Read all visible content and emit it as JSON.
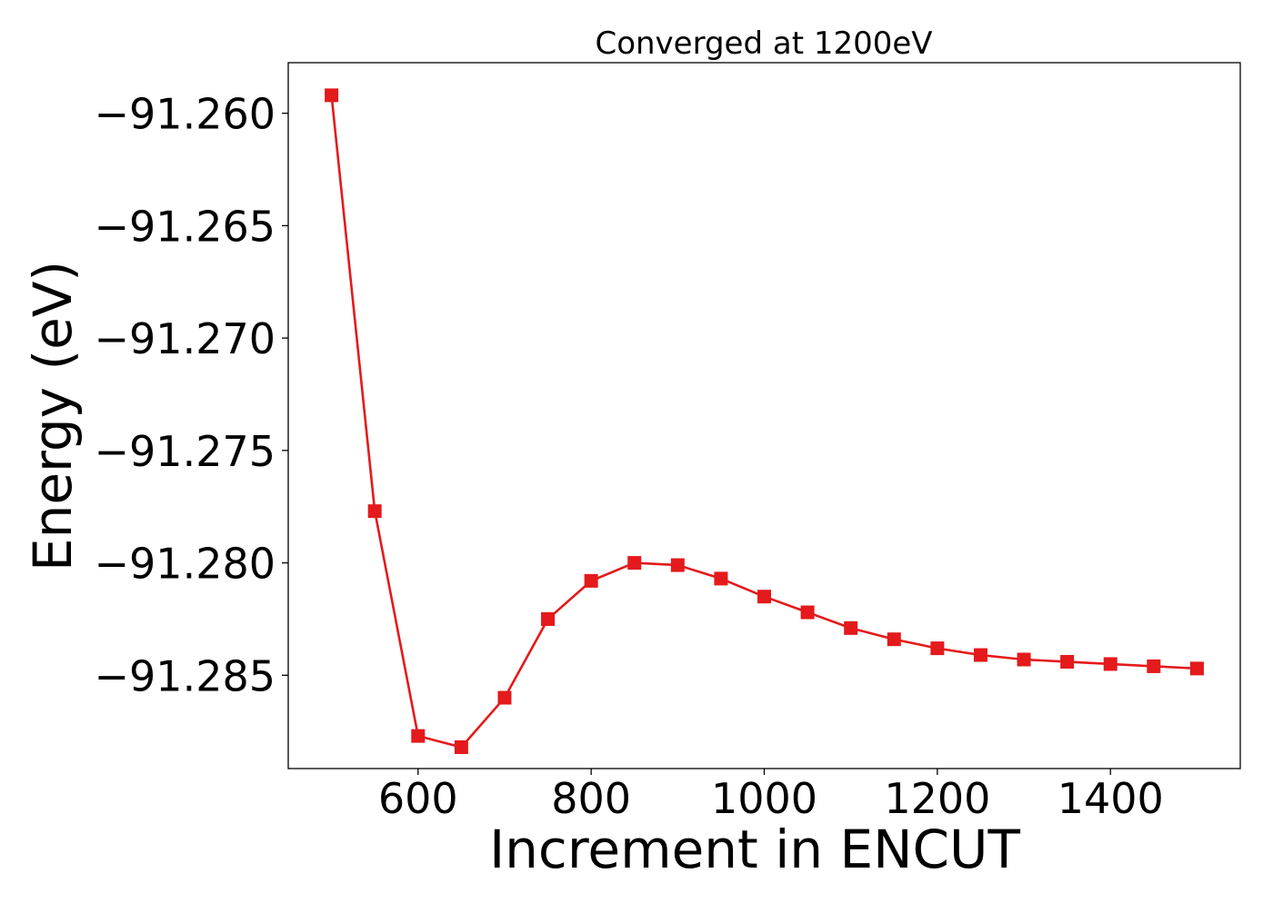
{
  "chart_data": {
    "type": "line",
    "title": "Converged at 1200eV",
    "xlabel": "Increment in ENCUT",
    "ylabel": "Energy (eV)",
    "x": [
      500,
      550,
      600,
      650,
      700,
      750,
      800,
      850,
      900,
      950,
      1000,
      1050,
      1100,
      1150,
      1200,
      1250,
      1300,
      1350,
      1400,
      1450,
      1500
    ],
    "series": [
      {
        "values": [
          -91.2592,
          -91.2777,
          -91.2877,
          -91.2882,
          -91.286,
          -91.2825,
          -91.2808,
          -91.28,
          -91.2801,
          -91.2807,
          -91.2815,
          -91.2822,
          -91.2829,
          -91.2834,
          -91.2838,
          -91.2841,
          -91.2843,
          -91.2844,
          -91.2845,
          -91.2846,
          -91.2847
        ],
        "color": "#e41a1c",
        "marker": "square"
      }
    ],
    "xlim": [
      450,
      1550
    ],
    "ylim": [
      -91.28915,
      -91.25775
    ],
    "xticks": [
      600,
      800,
      1000,
      1200,
      1400
    ],
    "xtick_labels": [
      "600",
      "800",
      "1000",
      "1200",
      "1400"
    ],
    "yticks": [
      -91.26,
      -91.265,
      -91.27,
      -91.275,
      -91.28,
      -91.285
    ],
    "ytick_labels": [
      "−91.260",
      "−91.265",
      "−91.270",
      "−91.275",
      "−91.280",
      "−91.285"
    ],
    "grid": false,
    "legend": false
  }
}
